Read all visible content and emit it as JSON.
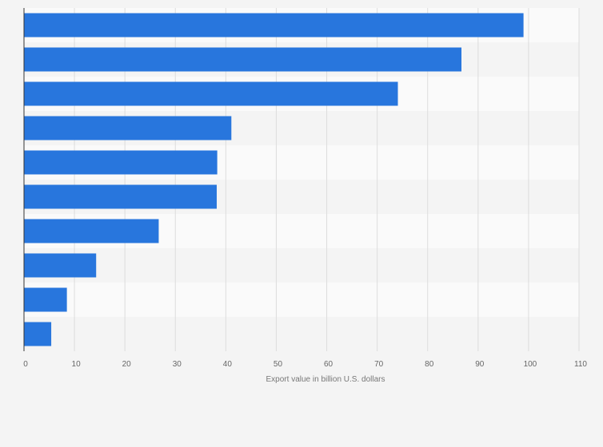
{
  "chart_data": {
    "type": "bar",
    "orientation": "horizontal",
    "categories": [
      "",
      "",
      "",
      "",
      "",
      "",
      "",
      "",
      "",
      ""
    ],
    "values": [
      99,
      86.7,
      74.1,
      41.1,
      38.3,
      38.2,
      26.7,
      14.3,
      8.5,
      5.4
    ],
    "title": "",
    "xlabel": "Export value in billion U.S. dollars",
    "ylabel": "",
    "xlim": [
      0,
      110
    ],
    "xticks": [
      0,
      10,
      20,
      30,
      40,
      50,
      60,
      70,
      80,
      90,
      100,
      110
    ],
    "grid": true,
    "legend": "none",
    "colors": {
      "bar": "#2876dd",
      "band_light": "#fafafa",
      "band_dark": "#f4f4f4",
      "gridline": "#dddddd",
      "axis": "#333333"
    }
  }
}
